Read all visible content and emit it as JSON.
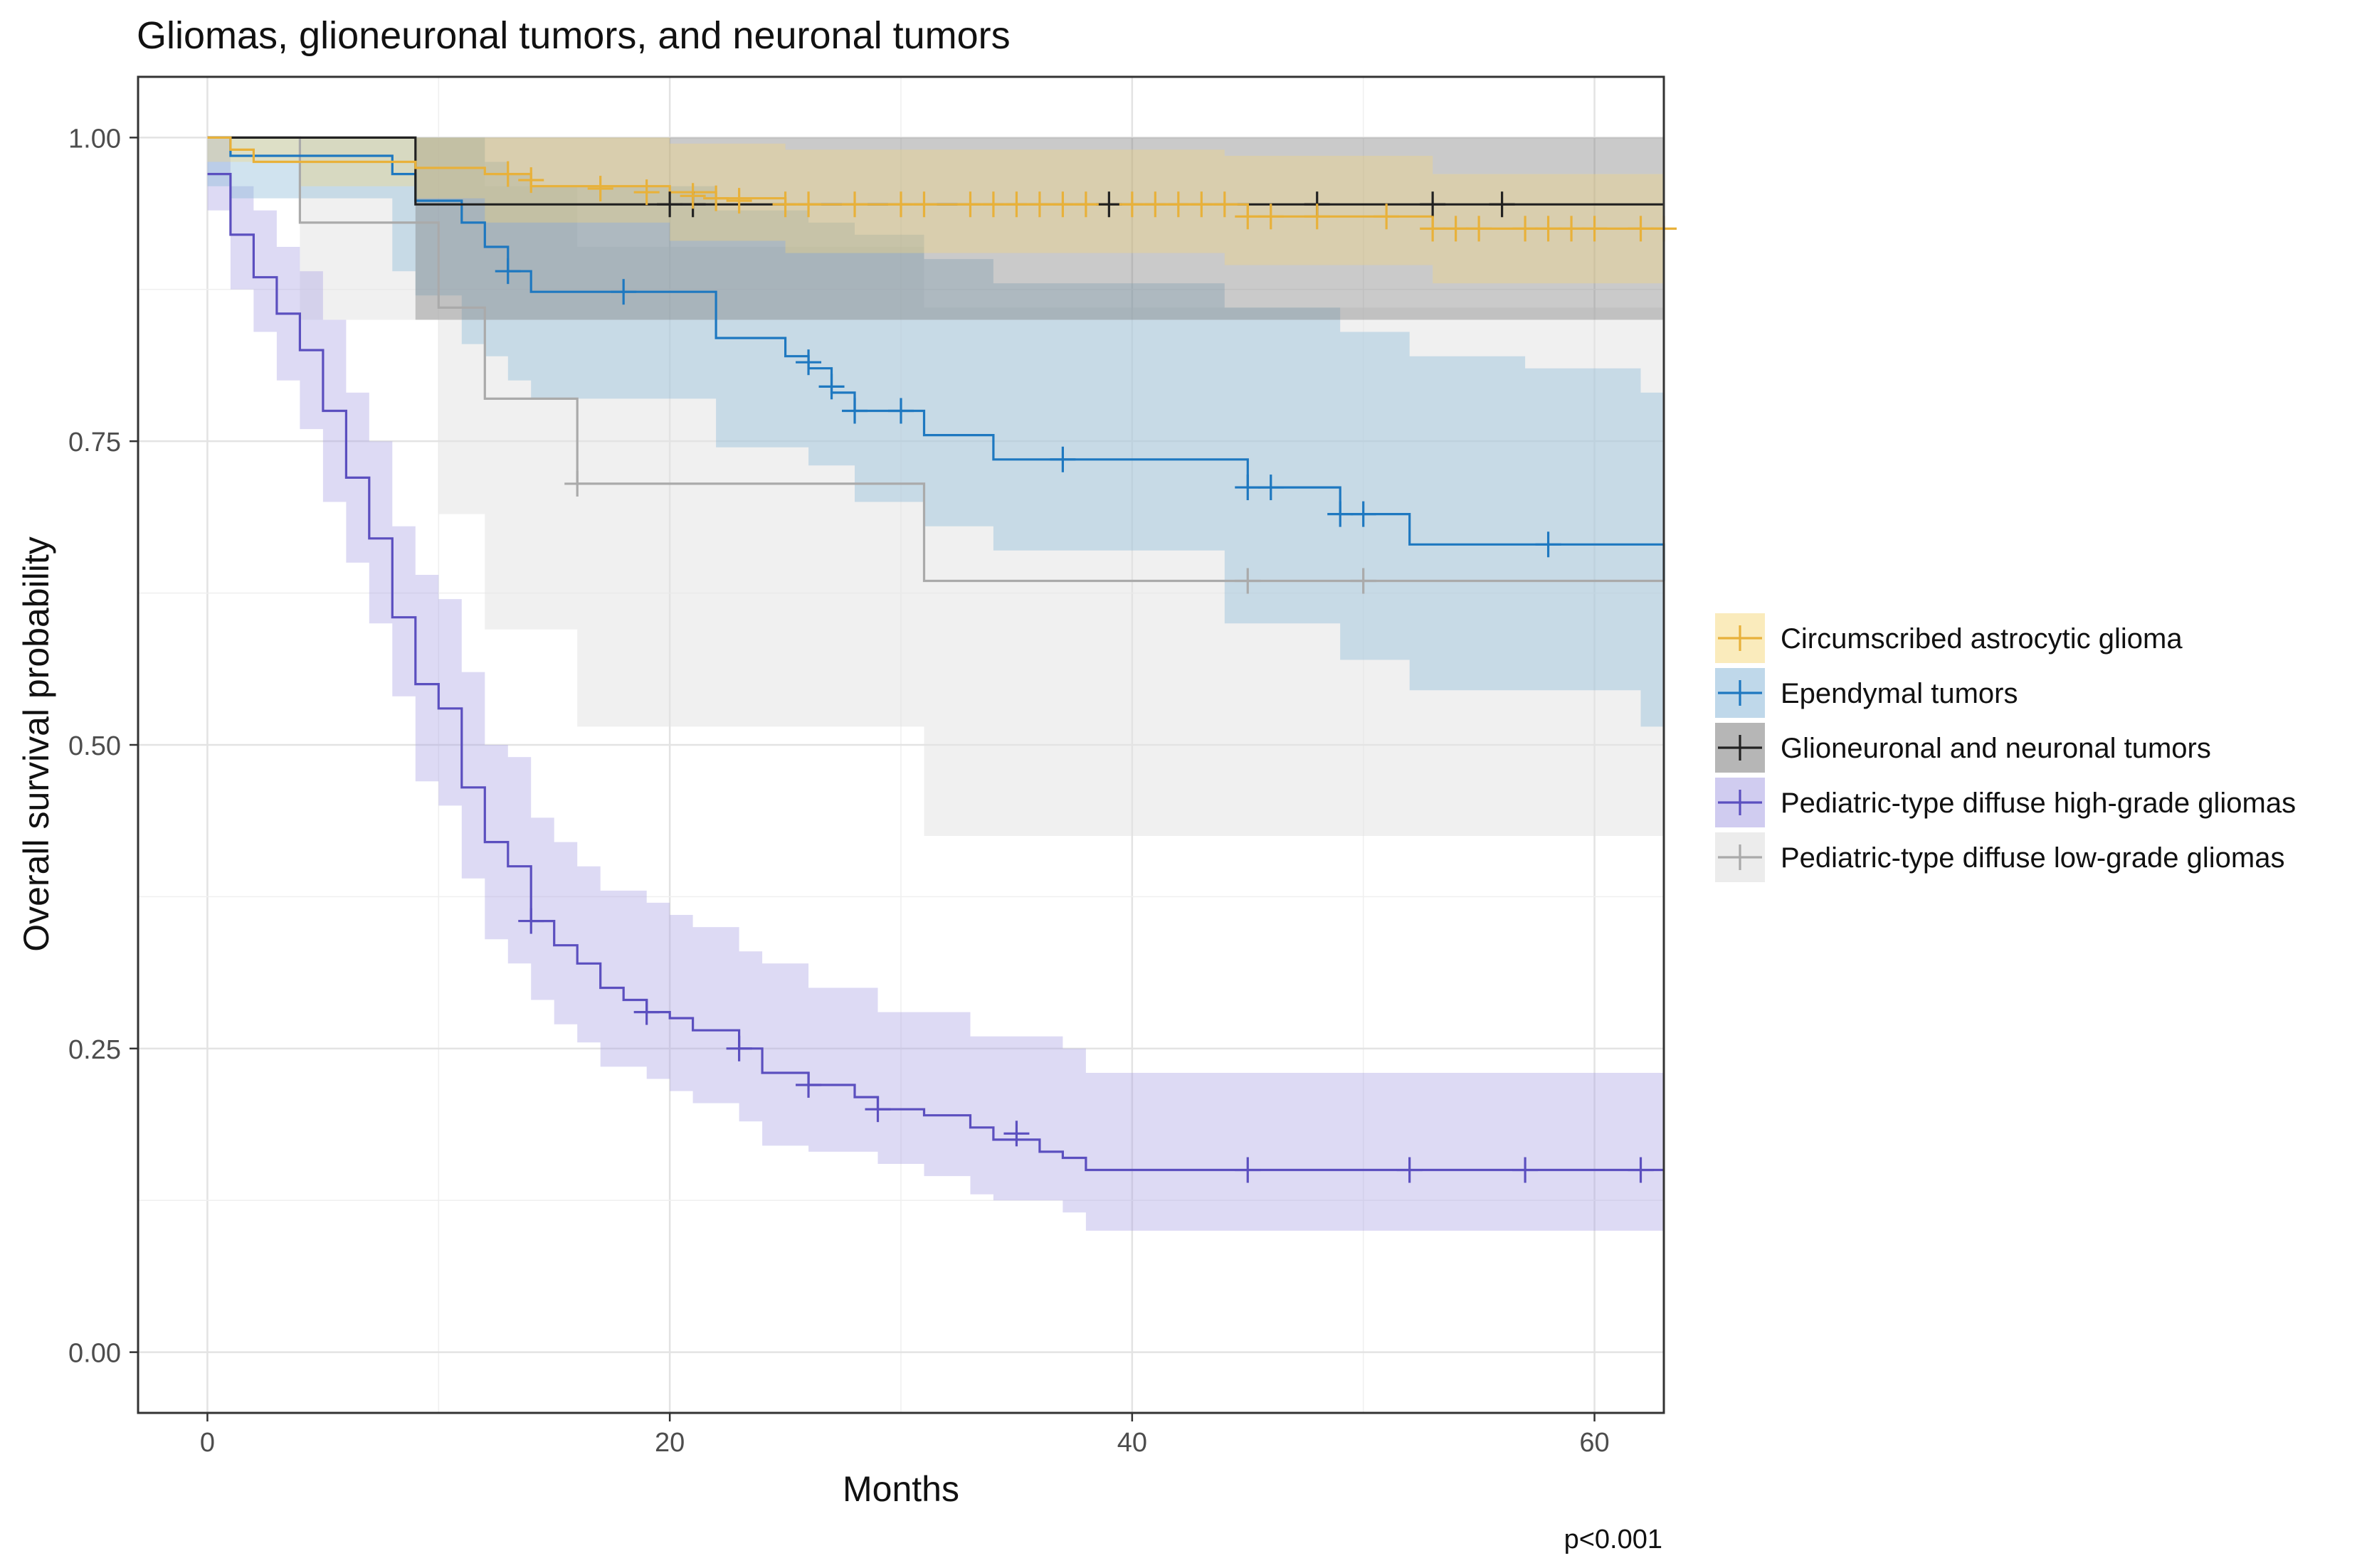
{
  "chart_data": {
    "type": "line",
    "subtype": "kaplan-meier survival curve with confidence bands",
    "title": "Gliomas, glioneuronal tumors, and neuronal tumors",
    "xlabel": "Months",
    "ylabel": "Overall survival probability",
    "xlim": [
      -3,
      63
    ],
    "ylim": [
      -0.05,
      1.05
    ],
    "x_ticks": [
      0,
      20,
      40,
      60
    ],
    "x_tick_labels": [
      "0",
      "20",
      "40",
      "60"
    ],
    "y_ticks": [
      0,
      0.25,
      0.5,
      0.75,
      1.0
    ],
    "y_tick_labels": [
      "0.00",
      "0.25",
      "0.50",
      "0.75",
      "1.00"
    ],
    "grid": true,
    "legend_position": "right",
    "annotation": "p<0.001",
    "series": [
      {
        "name": "Circumscribed astrocytic glioma",
        "color": "#EFC000",
        "line_color": "#E8B13A",
        "band_color": "#F6D77A",
        "band_opacity": 0.35,
        "steps": [
          [
            0,
            1.0
          ],
          [
            1,
            0.99
          ],
          [
            2,
            0.98
          ],
          [
            9,
            0.975
          ],
          [
            12,
            0.97
          ],
          [
            14,
            0.96
          ],
          [
            20,
            0.955
          ],
          [
            22,
            0.95
          ],
          [
            25,
            0.945
          ],
          [
            45,
            0.935
          ],
          [
            53,
            0.925
          ],
          [
            63,
            0.925
          ]
        ],
        "band": [
          [
            0,
            1.0,
            0.98
          ],
          [
            4,
            1.0,
            0.96
          ],
          [
            9,
            1.0,
            0.95
          ],
          [
            12,
            1.0,
            0.93
          ],
          [
            20,
            0.995,
            0.915
          ],
          [
            25,
            0.99,
            0.905
          ],
          [
            44,
            0.985,
            0.895
          ],
          [
            53,
            0.97,
            0.88
          ],
          [
            63,
            0.97,
            0.88
          ]
        ],
        "censors": [
          [
            13,
            0.97
          ],
          [
            14,
            0.965
          ],
          [
            17,
            0.958
          ],
          [
            19,
            0.955
          ],
          [
            21,
            0.952
          ],
          [
            22,
            0.95
          ],
          [
            23,
            0.948
          ],
          [
            25,
            0.945
          ],
          [
            26,
            0.945
          ],
          [
            28,
            0.945
          ],
          [
            30,
            0.945
          ],
          [
            31,
            0.945
          ],
          [
            33,
            0.945
          ],
          [
            34,
            0.945
          ],
          [
            35,
            0.945
          ],
          [
            36,
            0.945
          ],
          [
            37,
            0.945
          ],
          [
            38,
            0.945
          ],
          [
            40,
            0.945
          ],
          [
            41,
            0.945
          ],
          [
            42,
            0.945
          ],
          [
            43,
            0.945
          ],
          [
            44,
            0.945
          ],
          [
            45,
            0.935
          ],
          [
            46,
            0.935
          ],
          [
            48,
            0.935
          ],
          [
            51,
            0.935
          ],
          [
            53,
            0.925
          ],
          [
            54,
            0.925
          ],
          [
            55,
            0.925
          ],
          [
            57,
            0.925
          ],
          [
            58,
            0.925
          ],
          [
            59,
            0.925
          ],
          [
            60,
            0.925
          ],
          [
            62,
            0.925
          ],
          [
            63,
            0.925
          ]
        ]
      },
      {
        "name": "Ependymal tumors",
        "color": "#0073C2",
        "line_color": "#1E78C0",
        "band_color": "#8AB8D8",
        "band_opacity": 0.4,
        "steps": [
          [
            0,
            1.0
          ],
          [
            1,
            0.985
          ],
          [
            8,
            0.97
          ],
          [
            9,
            0.948
          ],
          [
            11,
            0.93
          ],
          [
            12,
            0.91
          ],
          [
            13,
            0.89
          ],
          [
            14,
            0.873
          ],
          [
            22,
            0.835
          ],
          [
            25,
            0.82
          ],
          [
            26,
            0.81
          ],
          [
            27,
            0.79
          ],
          [
            28,
            0.775
          ],
          [
            31,
            0.755
          ],
          [
            34,
            0.735
          ],
          [
            45,
            0.712
          ],
          [
            49,
            0.69
          ],
          [
            52,
            0.665
          ],
          [
            63,
            0.635
          ]
        ],
        "band": [
          [
            0,
            1.0,
            0.96
          ],
          [
            1,
            1.0,
            0.95
          ],
          [
            8,
            1.0,
            0.89
          ],
          [
            9,
            1.0,
            0.87
          ],
          [
            11,
            1.0,
            0.83
          ],
          [
            12,
            0.98,
            0.82
          ],
          [
            13,
            0.97,
            0.8
          ],
          [
            14,
            0.96,
            0.785
          ],
          [
            22,
            0.94,
            0.745
          ],
          [
            26,
            0.93,
            0.73
          ],
          [
            28,
            0.92,
            0.7
          ],
          [
            31,
            0.9,
            0.68
          ],
          [
            34,
            0.88,
            0.66
          ],
          [
            44,
            0.86,
            0.6
          ],
          [
            49,
            0.84,
            0.57
          ],
          [
            52,
            0.82,
            0.545
          ],
          [
            57,
            0.81,
            0.545
          ],
          [
            62,
            0.79,
            0.515
          ],
          [
            63,
            0.79,
            0.515
          ]
        ],
        "censors": [
          [
            13,
            0.89
          ],
          [
            18,
            0.873
          ],
          [
            26,
            0.815
          ],
          [
            27,
            0.795
          ],
          [
            28,
            0.775
          ],
          [
            30,
            0.775
          ],
          [
            37,
            0.735
          ],
          [
            45,
            0.712
          ],
          [
            46,
            0.712
          ],
          [
            49,
            0.69
          ],
          [
            50,
            0.69
          ],
          [
            58,
            0.665
          ]
        ]
      },
      {
        "name": "Glioneuronal and neuronal tumors",
        "color": "#000000",
        "line_color": "#222222",
        "band_color": "#7A7A7A",
        "band_opacity": 0.4,
        "steps": [
          [
            0,
            1.0
          ],
          [
            9,
            0.945
          ],
          [
            63,
            0.945
          ]
        ],
        "band": [
          [
            0,
            1.0,
            1.0
          ],
          [
            4,
            1.0,
            1.0
          ],
          [
            9,
            1.0,
            0.85
          ],
          [
            63,
            1.0,
            0.85
          ]
        ],
        "censors": [
          [
            20,
            0.945
          ],
          [
            21,
            0.945
          ],
          [
            39,
            0.945
          ],
          [
            48,
            0.945
          ],
          [
            53,
            0.945
          ],
          [
            56,
            0.945
          ]
        ]
      },
      {
        "name": "Pediatric-type diffuse high-grade gliomas",
        "color": "#6B5FCC",
        "line_color": "#5B4FBF",
        "band_color": "#A9A2E3",
        "band_opacity": 0.4,
        "steps": [
          [
            0,
            0.97
          ],
          [
            1,
            0.92
          ],
          [
            2,
            0.885
          ],
          [
            3,
            0.855
          ],
          [
            4,
            0.825
          ],
          [
            5,
            0.775
          ],
          [
            6,
            0.72
          ],
          [
            7,
            0.67
          ],
          [
            8,
            0.605
          ],
          [
            9,
            0.55
          ],
          [
            10,
            0.53
          ],
          [
            11,
            0.465
          ],
          [
            12,
            0.42
          ],
          [
            13,
            0.4
          ],
          [
            14,
            0.355
          ],
          [
            15,
            0.335
          ],
          [
            16,
            0.32
          ],
          [
            17,
            0.3
          ],
          [
            18,
            0.29
          ],
          [
            19,
            0.28
          ],
          [
            20,
            0.275
          ],
          [
            21,
            0.265
          ],
          [
            23,
            0.25
          ],
          [
            24,
            0.23
          ],
          [
            26,
            0.22
          ],
          [
            28,
            0.21
          ],
          [
            29,
            0.2
          ],
          [
            31,
            0.195
          ],
          [
            33,
            0.185
          ],
          [
            34,
            0.175
          ],
          [
            36,
            0.165
          ],
          [
            37,
            0.16
          ],
          [
            38,
            0.15
          ],
          [
            63,
            0.15
          ]
        ],
        "band": [
          [
            0,
            1.0,
            0.94
          ],
          [
            1,
            0.96,
            0.875
          ],
          [
            2,
            0.94,
            0.84
          ],
          [
            3,
            0.91,
            0.8
          ],
          [
            4,
            0.89,
            0.76
          ],
          [
            5,
            0.85,
            0.7
          ],
          [
            6,
            0.79,
            0.65
          ],
          [
            7,
            0.75,
            0.6
          ],
          [
            8,
            0.68,
            0.54
          ],
          [
            9,
            0.64,
            0.47
          ],
          [
            10,
            0.62,
            0.45
          ],
          [
            11,
            0.56,
            0.39
          ],
          [
            12,
            0.5,
            0.34
          ],
          [
            13,
            0.49,
            0.32
          ],
          [
            14,
            0.44,
            0.29
          ],
          [
            15,
            0.42,
            0.27
          ],
          [
            16,
            0.4,
            0.255
          ],
          [
            17,
            0.38,
            0.235
          ],
          [
            19,
            0.37,
            0.225
          ],
          [
            20,
            0.36,
            0.215
          ],
          [
            21,
            0.35,
            0.205
          ],
          [
            23,
            0.33,
            0.19
          ],
          [
            24,
            0.32,
            0.17
          ],
          [
            26,
            0.3,
            0.165
          ],
          [
            29,
            0.28,
            0.155
          ],
          [
            31,
            0.28,
            0.145
          ],
          [
            33,
            0.26,
            0.13
          ],
          [
            34,
            0.26,
            0.125
          ],
          [
            37,
            0.25,
            0.115
          ],
          [
            38,
            0.23,
            0.1
          ],
          [
            63,
            0.23,
            0.1
          ]
        ],
        "censors": [
          [
            14,
            0.355
          ],
          [
            19,
            0.28
          ],
          [
            23,
            0.25
          ],
          [
            26,
            0.22
          ],
          [
            29,
            0.2
          ],
          [
            35,
            0.18
          ],
          [
            45,
            0.15
          ],
          [
            52,
            0.15
          ],
          [
            57,
            0.15
          ],
          [
            62,
            0.15
          ]
        ]
      },
      {
        "name": "Pediatric-type diffuse low-grade gliomas",
        "color": "#BBBBBB",
        "line_color": "#AAAAAA",
        "band_color": "#E4E4E4",
        "band_opacity": 0.55,
        "steps": [
          [
            0,
            1.0
          ],
          [
            4,
            0.93
          ],
          [
            10,
            0.86
          ],
          [
            12,
            0.785
          ],
          [
            16,
            0.715
          ],
          [
            31,
            0.635
          ],
          [
            63,
            0.635
          ]
        ],
        "band": [
          [
            0,
            1.0,
            1.0
          ],
          [
            4,
            1.0,
            0.85
          ],
          [
            10,
            1.0,
            0.69
          ],
          [
            12,
            0.96,
            0.595
          ],
          [
            16,
            0.91,
            0.515
          ],
          [
            31,
            0.86,
            0.425
          ],
          [
            63,
            0.86,
            0.425
          ]
        ],
        "censors": [
          [
            16,
            0.715
          ],
          [
            45,
            0.635
          ],
          [
            50,
            0.635
          ]
        ]
      }
    ]
  }
}
